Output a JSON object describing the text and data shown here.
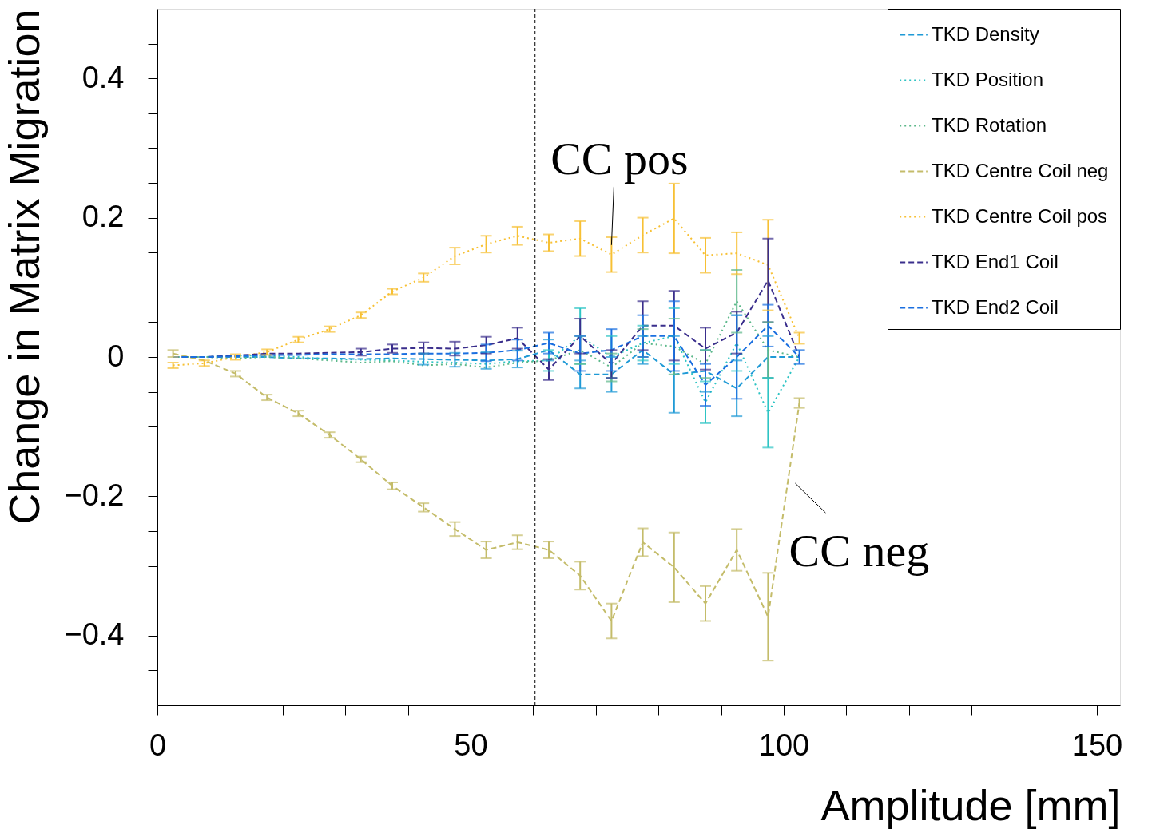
{
  "chart_data": {
    "type": "line",
    "xlabel": "Amplitude [mm]",
    "ylabel": "Change in Matrix Migration",
    "x": [
      2.5,
      7.5,
      12.5,
      17.5,
      22.5,
      27.5,
      32.5,
      37.5,
      42.5,
      47.5,
      52.5,
      57.5,
      62.5,
      67.5,
      72.5,
      77.5,
      82.5,
      87.5,
      92.5,
      97.5,
      102.5
    ],
    "xlim": [
      0,
      153.7
    ],
    "ylim": [
      -0.5,
      0.5
    ],
    "xticks": [
      0,
      {
        "value": 10,
        "label": null
      },
      {
        "value": 20,
        "label": null
      },
      {
        "value": 30,
        "label": null
      },
      {
        "value": 40,
        "label": null
      },
      50,
      {
        "value": 60,
        "label": null
      },
      {
        "value": 70,
        "label": null
      },
      {
        "value": 80,
        "label": null
      },
      {
        "value": 90,
        "label": null
      },
      100,
      {
        "value": 110,
        "label": null
      },
      {
        "value": 120,
        "label": null
      },
      {
        "value": 130,
        "label": null
      },
      {
        "value": 140,
        "label": null
      },
      150
    ],
    "yticks": [
      {
        "value": -0.45,
        "label": null
      },
      {
        "value": -0.4,
        "label": "−0.4"
      },
      {
        "value": -0.35,
        "label": null
      },
      {
        "value": -0.3,
        "label": null
      },
      {
        "value": -0.25,
        "label": null
      },
      {
        "value": -0.2,
        "label": "−0.2"
      },
      {
        "value": -0.15,
        "label": null
      },
      {
        "value": -0.1,
        "label": null
      },
      {
        "value": -0.05,
        "label": null
      },
      0,
      {
        "value": 0.05,
        "label": null
      },
      {
        "value": 0.1,
        "label": null
      },
      {
        "value": 0.15,
        "label": null
      },
      0.2,
      {
        "value": 0.25,
        "label": null
      },
      {
        "value": 0.3,
        "label": null
      },
      {
        "value": 0.35,
        "label": null
      },
      0.4,
      {
        "value": 0.45,
        "label": null
      }
    ],
    "grid": false,
    "legend": "top right",
    "marker": "none",
    "series": [
      {
        "name": "TKD Density",
        "color": "#1f9ad6",
        "line_style": "dashed",
        "values": [
          0,
          0,
          0,
          0,
          -0.002,
          -0.002,
          -0.003,
          -0.002,
          -0.003,
          -0.004,
          -0.005,
          -0.003,
          0.01,
          -0.025,
          -0.025,
          0.01,
          -0.025,
          -0.02,
          -0.045,
          0.0,
          0.0
        ],
        "errors": [
          null,
          null,
          null,
          null,
          null,
          null,
          null,
          null,
          0.008,
          0.01,
          0.012,
          0.012,
          0.015,
          0.02,
          0.025,
          0.02,
          0.055,
          0.03,
          0.04,
          0.03,
          null
        ]
      },
      {
        "name": "TKD Position",
        "color": "#2ec4c4",
        "line_style": "dotted",
        "values": [
          0,
          0,
          0.002,
          0.002,
          0,
          -0.003,
          -0.004,
          -0.005,
          -0.007,
          -0.008,
          -0.01,
          -0.006,
          -0.005,
          0.03,
          0.0,
          0.02,
          0.03,
          -0.065,
          0.02,
          -0.08,
          0.0
        ],
        "errors": [
          null,
          null,
          null,
          null,
          null,
          null,
          null,
          null,
          null,
          null,
          null,
          null,
          0.015,
          0.04,
          0.03,
          0.025,
          0.04,
          0.03,
          0.04,
          0.05,
          null
        ]
      },
      {
        "name": "TKD Rotation",
        "color": "#5cb88a",
        "line_style": "dotted",
        "values": [
          0,
          0,
          -0.002,
          0,
          -0.002,
          -0.005,
          -0.008,
          -0.006,
          -0.012,
          -0.01,
          -0.015,
          -0.008,
          -0.005,
          0.01,
          -0.015,
          0.02,
          0.015,
          -0.01,
          0.08,
          0.01,
          0.0
        ],
        "errors": [
          null,
          null,
          null,
          null,
          null,
          null,
          null,
          null,
          null,
          null,
          null,
          null,
          null,
          0.02,
          0.02,
          0.02,
          0.04,
          0.02,
          0.045,
          0.04,
          null
        ]
      },
      {
        "name": "TKD Centre Coil neg",
        "color": "#c4bc6a",
        "line_style": "dashed",
        "values": [
          0.005,
          -0.005,
          -0.024,
          -0.058,
          -0.081,
          -0.112,
          -0.147,
          -0.185,
          -0.216,
          -0.247,
          -0.277,
          -0.266,
          -0.277,
          -0.314,
          -0.379,
          -0.266,
          -0.302,
          -0.354,
          -0.277,
          -0.373,
          -0.066
        ],
        "errors": [
          0.005,
          null,
          0.004,
          0.004,
          0.004,
          0.004,
          0.004,
          0.005,
          0.006,
          0.01,
          0.012,
          0.01,
          0.012,
          0.02,
          0.025,
          0.02,
          0.05,
          0.025,
          0.03,
          0.063,
          0.007
        ]
      },
      {
        "name": "TKD Centre Coil pos",
        "color": "#f7c034",
        "line_style": "dotted",
        "values": [
          -0.012,
          -0.009,
          0,
          0.007,
          0.025,
          0.04,
          0.06,
          0.094,
          0.114,
          0.145,
          0.162,
          0.174,
          0.164,
          0.17,
          0.147,
          0.175,
          0.199,
          0.146,
          0.149,
          0.132,
          0.027
        ],
        "errors": [
          0.004,
          0.004,
          0.004,
          0.004,
          0.004,
          0.004,
          0.004,
          0.004,
          0.006,
          0.012,
          0.012,
          0.013,
          0.012,
          0.025,
          0.025,
          0.025,
          0.05,
          0.025,
          0.03,
          0.065,
          0.008
        ]
      },
      {
        "name": "TKD End1 Coil",
        "color": "#3a2e8c",
        "line_style": "dashed",
        "values": [
          0,
          0,
          0.002,
          0.005,
          0.005,
          0.006,
          0.007,
          0.012,
          0.013,
          0.012,
          0.017,
          0.027,
          -0.018,
          0.03,
          -0.01,
          0.045,
          0.045,
          0.012,
          0.035,
          0.11,
          0.0
        ],
        "errors": [
          null,
          null,
          null,
          null,
          null,
          null,
          0.005,
          0.006,
          0.008,
          0.01,
          0.012,
          0.015,
          0.015,
          0.025,
          0.02,
          0.035,
          0.05,
          0.03,
          0.03,
          0.06,
          null
        ]
      },
      {
        "name": "TKD End2 Coil",
        "color": "#1a6fe0",
        "line_style": "dashed",
        "values": [
          0,
          0,
          0.001,
          0.003,
          0.003,
          0.004,
          0.004,
          0.004,
          0.005,
          0.005,
          0.006,
          0.01,
          0.02,
          0.005,
          0.01,
          0.03,
          0.03,
          -0.04,
          0.0,
          0.045,
          0.0
        ],
        "errors": [
          null,
          null,
          null,
          null,
          null,
          null,
          null,
          null,
          null,
          null,
          0.012,
          0.015,
          0.015,
          0.025,
          0.03,
          0.03,
          0.05,
          0.03,
          0.06,
          0.03,
          0.01
        ]
      }
    ],
    "ref_lines": [
      {
        "axis": "x",
        "value": 60.3,
        "color": "#000000",
        "line_style": "dashed"
      }
    ],
    "annotations": [
      {
        "text": "CC pos",
        "x": 72.5,
        "y": 0.147
      },
      {
        "text": "CC neg",
        "x": 101.2,
        "y": -0.148
      }
    ]
  }
}
